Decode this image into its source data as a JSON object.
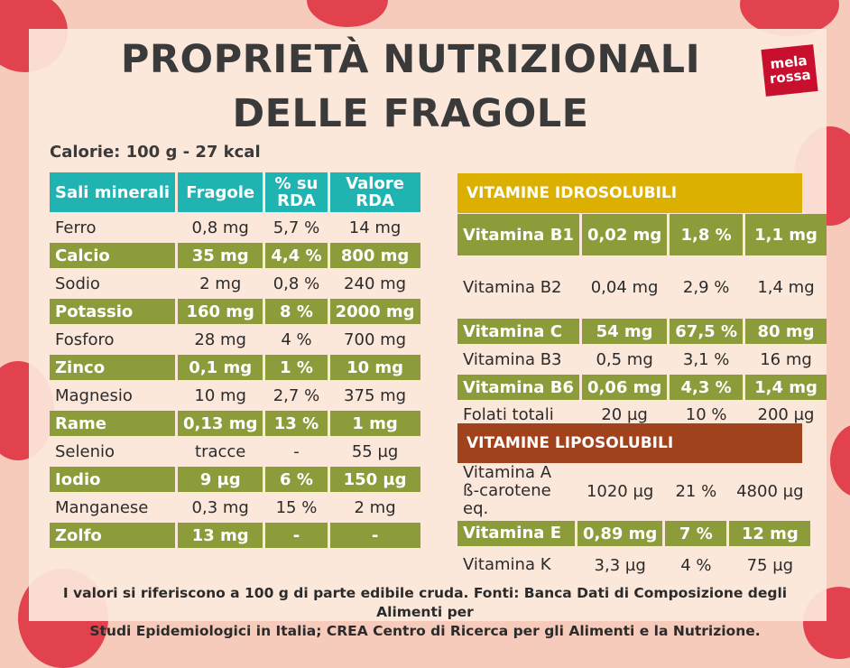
{
  "title_line1": "PROPRIETÀ NUTRIZIONALI",
  "title_line2": "DELLE FRAGOLE",
  "logo_line1": "mela",
  "logo_line2": "rossa",
  "calories": "Calorie: 100 g - 27 kcal",
  "colors": {
    "teal": "#1fb3b2",
    "olive": "#8c9c3a",
    "yellow": "#dcb000",
    "brown": "#a0421b",
    "background": "#f6cbbb"
  },
  "minerals": {
    "headers": [
      "Sali minerali",
      "Fragole",
      "% su RDA",
      "Valore RDA"
    ],
    "rows": [
      [
        "Ferro",
        "0,8 mg",
        "5,7 %",
        "14 mg"
      ],
      [
        "Calcio",
        "35 mg",
        "4,4 %",
        "800 mg"
      ],
      [
        "Sodio",
        "2 mg",
        "0,8 %",
        "240 mg"
      ],
      [
        "Potassio",
        "160 mg",
        "8 %",
        "2000 mg"
      ],
      [
        "Fosforo",
        "28 mg",
        "4 %",
        "700 mg"
      ],
      [
        "Zinco",
        "0,1 mg",
        "1 %",
        "10 mg"
      ],
      [
        "Magnesio",
        "10 mg",
        "2,7 %",
        "375 mg"
      ],
      [
        "Rame",
        "0,13 mg",
        "13 %",
        "1 mg"
      ],
      [
        "Selenio",
        "tracce",
        "-",
        "55 µg"
      ],
      [
        "Iodio",
        "9 µg",
        "6 %",
        "150 µg"
      ],
      [
        "Manganese",
        "0,3 mg",
        "15 %",
        "2 mg"
      ],
      [
        "Zolfo",
        "13 mg",
        "-",
        "-"
      ]
    ]
  },
  "vit_idro": {
    "heading": "VITAMINE IDROSOLUBILI",
    "rows": [
      [
        "Vitamina B1",
        "0,02 mg",
        "1,8 %",
        "1,1 mg"
      ],
      [
        "Vitamina B2",
        "0,04 mg",
        "2,9 %",
        "1,4 mg"
      ],
      [
        "Vitamina C",
        "54 mg",
        "67,5 %",
        "80 mg"
      ],
      [
        "Vitamina B3",
        "0,5 mg",
        "3,1 %",
        "16 mg"
      ],
      [
        "Vitamina B6",
        "0,06 mg",
        "4,3 %",
        "1,4 mg"
      ],
      [
        "Folati totali",
        "20 µg",
        "10 %",
        "200 µg"
      ]
    ]
  },
  "vit_lipo": {
    "heading": "VITAMINE LIPOSOLUBILI",
    "rows": [
      [
        "Vitamina A ß-carotene eq.",
        "1020 µg",
        "21 %",
        "4800 µg"
      ],
      [
        "Vitamina E",
        "0,89 mg",
        "7 %",
        "12 mg"
      ],
      [
        "Vitamina K",
        "3,3 µg",
        "4 %",
        "75 µg"
      ]
    ]
  },
  "footnote_line1": "I valori si riferiscono a 100 g di parte edibile cruda. Fonti: Banca Dati di Composizione degli Alimenti per",
  "footnote_line2": "Studi Epidemiologici in Italia; CREA Centro di Ricerca per gli Alimenti e la Nutrizione."
}
